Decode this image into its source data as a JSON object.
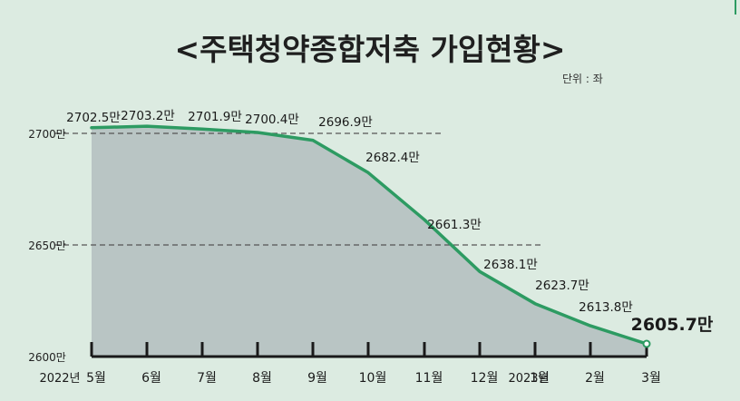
{
  "title": "<주택청약종합저축 가입현황>",
  "unit": "단위 : 좌",
  "chart_data": {
    "type": "area",
    "title": "<주택청약종합저축 가입현황>",
    "unit": "단위 : 좌",
    "categories": [
      "5월",
      "6월",
      "7월",
      "8월",
      "9월",
      "10월",
      "11월",
      "12월",
      "1월",
      "2월",
      "3월"
    ],
    "year_labels": [
      {
        "index": 0,
        "text": "2022년"
      },
      {
        "index": 8,
        "text": "2023년"
      }
    ],
    "values": [
      2702.5,
      2703.2,
      2701.9,
      2700.4,
      2696.9,
      2682.4,
      2661.3,
      2638.1,
      2623.7,
      2613.8,
      2605.7
    ],
    "value_labels": [
      "2702.5만",
      "2703.2만",
      "2701.9만",
      "2700.4만",
      "2696.9만",
      "2682.4만",
      "2661.3만",
      "2638.1만",
      "2623.7만",
      "2613.8만",
      "2605.7만"
    ],
    "y_ticks": [
      {
        "value": 2700,
        "label": "2700만"
      },
      {
        "value": 2650,
        "label": "2650만"
      },
      {
        "value": 2600,
        "label": "2600만"
      }
    ],
    "ylim": [
      2600,
      2705
    ],
    "highlight_last": true,
    "colors": {
      "line": "#2d9b62",
      "area": "#b9c5c4",
      "background": "#dcebe1",
      "gridline": "#555555"
    }
  }
}
